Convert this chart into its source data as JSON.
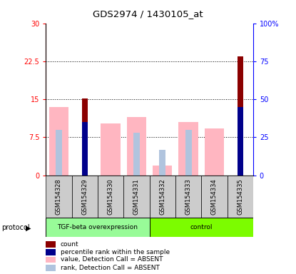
{
  "title": "GDS2974 / 1430105_at",
  "samples": [
    "GSM154328",
    "GSM154329",
    "GSM154330",
    "GSM154331",
    "GSM154332",
    "GSM154333",
    "GSM154334",
    "GSM154335"
  ],
  "left_ylim": [
    0,
    30
  ],
  "right_ylim": [
    0,
    100
  ],
  "left_yticks": [
    0,
    7.5,
    15,
    22.5,
    30
  ],
  "right_yticks": [
    0,
    25,
    50,
    75,
    100
  ],
  "left_yticklabels": [
    "0",
    "7.5",
    "15",
    "22.5",
    "30"
  ],
  "right_yticklabels": [
    "0",
    "25",
    "50",
    "75",
    "100%"
  ],
  "value_absent": [
    13.5,
    null,
    10.2,
    11.5,
    2.0,
    10.5,
    9.2,
    null
  ],
  "rank_absent_pct": [
    30.0,
    null,
    null,
    28.0,
    17.0,
    30.0,
    null,
    null
  ],
  "count": [
    null,
    15.2,
    null,
    null,
    null,
    null,
    null,
    23.5
  ],
  "percentile_rank_pct": [
    null,
    35.0,
    null,
    null,
    null,
    null,
    null,
    45.0
  ],
  "tgf_color": "#98FB98",
  "ctrl_color": "#7CFC00",
  "absent_value_color": "#FFB6C1",
  "absent_rank_color": "#B0C4DE",
  "count_color": "#8B0000",
  "percentile_color": "#00008B",
  "group_labels": [
    "TGF-beta overexpression",
    "control"
  ],
  "legend_items": [
    [
      "#8B0000",
      "count"
    ],
    [
      "#00008B",
      "percentile rank within the sample"
    ],
    [
      "#FFB6C1",
      "value, Detection Call = ABSENT"
    ],
    [
      "#B0C4DE",
      "rank, Detection Call = ABSENT"
    ]
  ]
}
